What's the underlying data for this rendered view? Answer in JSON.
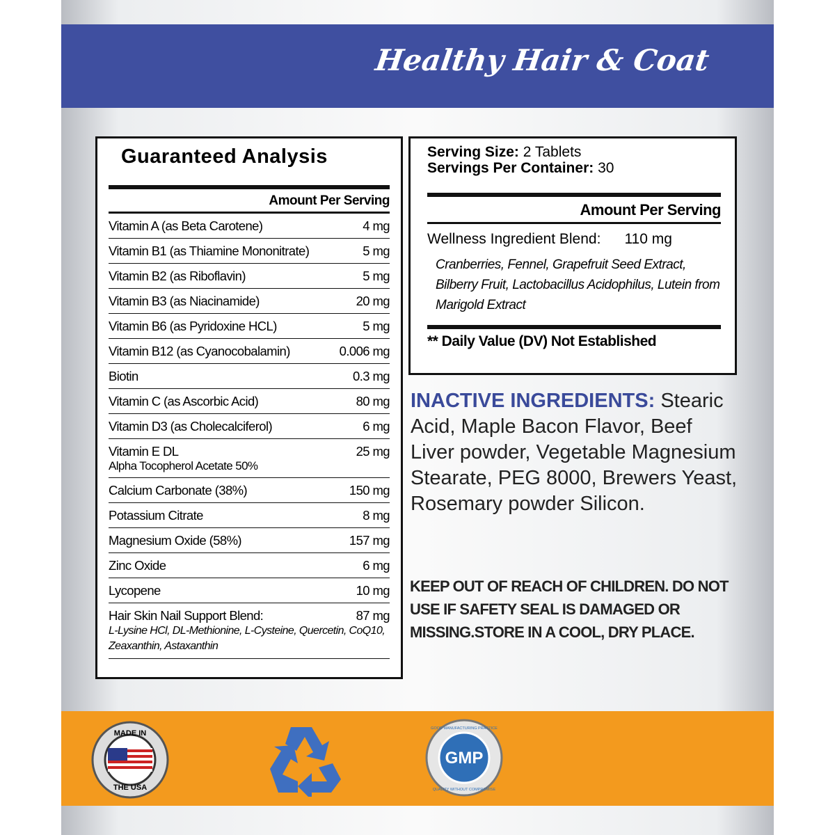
{
  "header": {
    "title": "Healthy Hair & Coat"
  },
  "analysis": {
    "title": "Guaranteed Analysis",
    "column_header": "Amount Per Serving",
    "rows": [
      {
        "name": "Vitamin A (as Beta Carotene)",
        "amount": "4 mg"
      },
      {
        "name": "Vitamin B1 (as Thiamine Mononitrate)",
        "amount": "5 mg"
      },
      {
        "name": "Vitamin B2 (as Riboflavin)",
        "amount": "5 mg"
      },
      {
        "name": "Vitamin B3 (as Niacinamide)",
        "amount": "20 mg"
      },
      {
        "name": "Vitamin B6 (as Pyridoxine HCL)",
        "amount": "5 mg"
      },
      {
        "name": "Vitamin B12 (as Cyanocobalamin)",
        "amount": "0.006 mg"
      },
      {
        "name": "Biotin",
        "amount": "0.3 mg"
      },
      {
        "name": "Vitamin C (as Ascorbic Acid)",
        "amount": "80 mg"
      },
      {
        "name": "Vitamin D3 (as Cholecalciferol)",
        "amount": "6 mg"
      },
      {
        "name": "Vitamin E DL",
        "amount": "25 mg",
        "note": "Alpha Tocopherol Acetate 50%"
      },
      {
        "name": "Calcium Carbonate (38%)",
        "amount": "150 mg"
      },
      {
        "name": "Potassium Citrate",
        "amount": "8 mg"
      },
      {
        "name": "Magnesium Oxide (58%)",
        "amount": "157 mg"
      },
      {
        "name": "Zinc Oxide",
        "amount": "6 mg"
      },
      {
        "name": "Lycopene",
        "amount": "10 mg"
      },
      {
        "name": "Hair Skin Nail Support Blend:",
        "amount": "87 mg",
        "note": "L-Lysine HCl, DL-Methionine, L-Cysteine, Quercetin, CoQ10, Zeaxanthin, Astaxanthin"
      }
    ]
  },
  "supplement": {
    "serving_size_label": "Serving Size:",
    "serving_size": "2 Tablets",
    "servings_label": "Servings Per Container:",
    "servings": "30",
    "column_header": "Amount Per Serving",
    "blend_name": "Wellness Ingredient Blend:",
    "blend_amount": "110 mg",
    "blend_ingredients": "Cranberries, Fennel, Grapefruit Seed Extract, Bilberry Fruit, Lactobacillus Acidophilus, Lutein from Marigold Extract",
    "footnote": "** Daily Value (DV) Not Established"
  },
  "inactive": {
    "label": "INACTIVE INGREDIENTS:",
    "text": "Stearic Acid, Maple Bacon Flavor, Beef Liver powder, Vegetable Magnesium Stearate, PEG 8000, Brewers Yeast, Rosemary powder Silicon."
  },
  "warning": "KEEP OUT OF REACH OF CHILDREN. DO NOT USE IF SAFETY SEAL IS DAMAGED OR MISSING.STORE IN A COOL, DRY PLACE.",
  "badges": {
    "usa_top": "MADE IN",
    "usa_bottom": "THE USA",
    "gmp": "GMP",
    "gmp_top": "GOOD MANUFACTURING PRACTICE",
    "gmp_bottom": "QUALITY WITHOUT COMPROMISE"
  }
}
